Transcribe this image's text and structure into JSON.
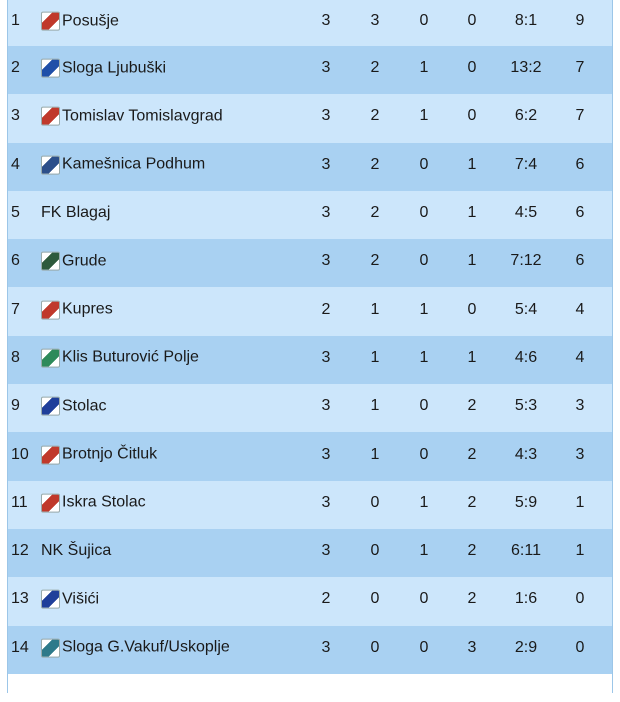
{
  "standings": [
    {
      "pos": "1",
      "team": "Posušje",
      "played": "3",
      "won": "3",
      "drawn": "0",
      "lost": "0",
      "goals": "8:1",
      "points": "9",
      "crest": "posusje-crest-icon",
      "crest_color": "#c0392b"
    },
    {
      "pos": "2",
      "team": "Sloga Ljubuški",
      "played": "3",
      "won": "2",
      "drawn": "1",
      "lost": "0",
      "goals": "13:2",
      "points": "7",
      "crest": "sloga-ljubuski-crest-icon",
      "crest_color": "#1f4fa8"
    },
    {
      "pos": "3",
      "team": "Tomislav Tomislavgrad",
      "played": "3",
      "won": "2",
      "drawn": "1",
      "lost": "0",
      "goals": "6:2",
      "points": "7",
      "crest": "tomislav-crest-icon",
      "crest_color": "#c0392b"
    },
    {
      "pos": "4",
      "team": "Kamešnica Podhum",
      "played": "3",
      "won": "2",
      "drawn": "0",
      "lost": "1",
      "goals": "7:4",
      "points": "6",
      "crest": "kamesnica-crest-icon",
      "crest_color": "#2c4f8a"
    },
    {
      "pos": "5",
      "team": "FK Blagaj",
      "played": "3",
      "won": "2",
      "drawn": "0",
      "lost": "1",
      "goals": "4:5",
      "points": "6",
      "crest": "",
      "crest_color": ""
    },
    {
      "pos": "6",
      "team": "Grude",
      "played": "3",
      "won": "2",
      "drawn": "0",
      "lost": "1",
      "goals": "7:12",
      "points": "6",
      "crest": "grude-crest-icon",
      "crest_color": "#2e5a3c"
    },
    {
      "pos": "7",
      "team": "Kupres",
      "played": "2",
      "won": "1",
      "drawn": "1",
      "lost": "0",
      "goals": "5:4",
      "points": "4",
      "crest": "kupres-crest-icon",
      "crest_color": "#c0392b"
    },
    {
      "pos": "8",
      "team": "Klis Buturović Polje",
      "played": "3",
      "won": "1",
      "drawn": "1",
      "lost": "1",
      "goals": "4:6",
      "points": "4",
      "crest": "klis-crest-icon",
      "crest_color": "#2e8a5a"
    },
    {
      "pos": "9",
      "team": "Stolac",
      "played": "3",
      "won": "1",
      "drawn": "0",
      "lost": "2",
      "goals": "5:3",
      "points": "3",
      "crest": "stolac-crest-icon",
      "crest_color": "#1f3f9a"
    },
    {
      "pos": "10",
      "team": "Brotnjo Čitluk",
      "played": "3",
      "won": "1",
      "drawn": "0",
      "lost": "2",
      "goals": "4:3",
      "points": "3",
      "crest": "brotnjo-crest-icon",
      "crest_color": "#c0392b"
    },
    {
      "pos": "11",
      "team": "Iskra Stolac",
      "played": "3",
      "won": "0",
      "drawn": "1",
      "lost": "2",
      "goals": "5:9",
      "points": "1",
      "crest": "iskra-crest-icon",
      "crest_color": "#c0392b"
    },
    {
      "pos": "12",
      "team": "NK Šujica",
      "played": "3",
      "won": "0",
      "drawn": "1",
      "lost": "2",
      "goals": "6:11",
      "points": "1",
      "crest": "",
      "crest_color": ""
    },
    {
      "pos": "13",
      "team": "Višići",
      "played": "2",
      "won": "0",
      "drawn": "0",
      "lost": "2",
      "goals": "1:6",
      "points": "0",
      "crest": "visici-crest-icon",
      "crest_color": "#1f3f9a"
    },
    {
      "pos": "14",
      "team": "Sloga G.Vakuf/Uskoplje",
      "played": "3",
      "won": "0",
      "drawn": "0",
      "lost": "3",
      "goals": "2:9",
      "points": "0",
      "crest": "sloga-gv-crest-icon",
      "crest_color": "#2e7a8a"
    }
  ]
}
